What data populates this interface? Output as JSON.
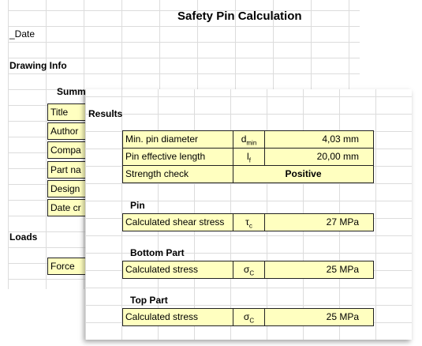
{
  "back_sheet": {
    "title": "Safety Pin Calculation",
    "date_label": "_Date",
    "drawing_info": "Drawing Info",
    "summary": "Summ",
    "fields": [
      "Title",
      "Author",
      "Compa",
      "Part na",
      "Design",
      "Date cr"
    ],
    "loads": "Loads",
    "force": "Force"
  },
  "results": {
    "title": "Results",
    "rows": [
      {
        "label": "Min. pin diameter",
        "symbol": "d",
        "sub": "min",
        "value": "4,03 mm"
      },
      {
        "label": "Pin effective length",
        "symbol": "l",
        "sub": "f",
        "value": "20,00 mm"
      },
      {
        "label": "Strength check",
        "value": "Positive"
      }
    ],
    "sections": [
      {
        "heading": "Pin",
        "label": "Calculated shear stress",
        "symbol": "τ",
        "sub": "c",
        "value": "27 MPa"
      },
      {
        "heading": "Bottom Part",
        "label": "Calculated stress",
        "symbol": "σ",
        "sub": "C",
        "value": "25 MPa"
      },
      {
        "heading": "Top Part",
        "label": "Calculated stress",
        "symbol": "σ",
        "sub": "C",
        "value": "25 MPa"
      }
    ]
  }
}
